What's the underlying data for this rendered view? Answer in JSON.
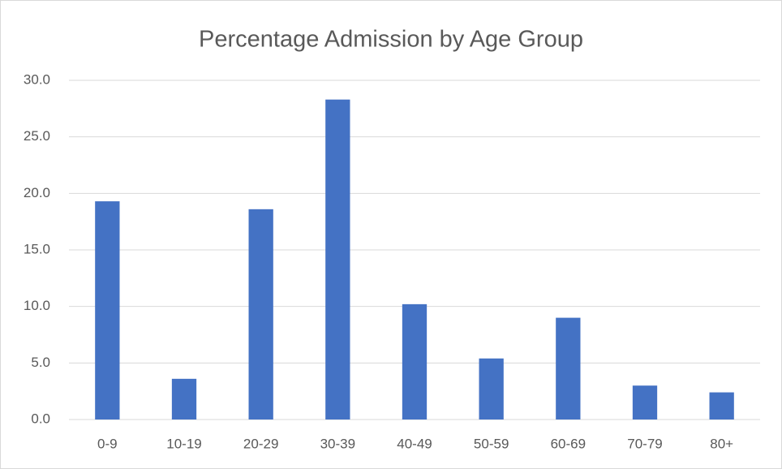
{
  "chart_data": {
    "type": "bar",
    "title": "Percentage Admission by Age Group",
    "categories": [
      "0-9",
      "10-19",
      "20-29",
      "30-39",
      "40-49",
      "50-59",
      "60-69",
      "70-79",
      "80+"
    ],
    "values": [
      19.3,
      3.6,
      18.6,
      28.3,
      10.2,
      5.4,
      9.0,
      3.0,
      2.4
    ],
    "color": "#4472c4",
    "ylim": [
      0,
      30
    ],
    "yticks": [
      {
        "value": 0,
        "label": "0.0"
      },
      {
        "value": 5,
        "label": "5.0"
      },
      {
        "value": 10,
        "label": "10.0"
      },
      {
        "value": 15,
        "label": "15.0"
      },
      {
        "value": 20,
        "label": "20.0"
      },
      {
        "value": 25,
        "label": "25.0"
      },
      {
        "value": 30,
        "label": "30.0"
      }
    ],
    "grid": true
  }
}
